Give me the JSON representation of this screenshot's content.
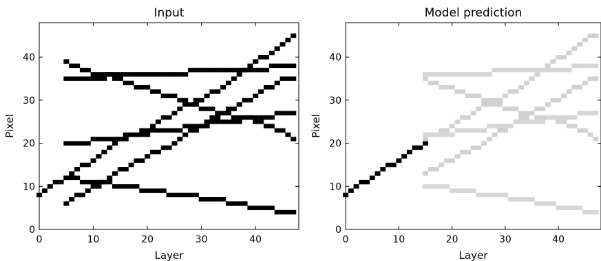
{
  "chart_data": [
    {
      "type": "heatmap",
      "title": "Input",
      "xlabel": "Layer",
      "ylabel": "Pixel",
      "xlim": [
        0,
        48
      ],
      "ylim": [
        0,
        48
      ],
      "xticks": [
        0,
        10,
        20,
        30,
        40
      ],
      "yticks": [
        0,
        10,
        20,
        30,
        40
      ],
      "colormap": "white-to-black",
      "tracks": [
        {
          "x": [
            0,
            1,
            2,
            3,
            4,
            5,
            6,
            7,
            8,
            9,
            10,
            11,
            12,
            13,
            14,
            15,
            16,
            17,
            18,
            19,
            20,
            21,
            22,
            23,
            24,
            25,
            26,
            27,
            28,
            29,
            30,
            31,
            32,
            33,
            34,
            35,
            36,
            37,
            38,
            39,
            40,
            41,
            42,
            43,
            44,
            45,
            46,
            47
          ],
          "y": [
            8,
            9,
            10,
            11,
            11,
            12,
            13,
            14,
            15,
            15,
            16,
            17,
            18,
            19,
            20,
            21,
            21,
            22,
            22,
            23,
            23,
            24,
            25,
            26,
            26,
            27,
            28,
            29,
            29,
            30,
            30,
            31,
            32,
            32,
            33,
            34,
            35,
            36,
            37,
            38,
            39,
            40,
            40,
            41,
            42,
            43,
            44,
            45
          ],
          "intensity": 1
        },
        {
          "x": [
            5,
            6,
            7,
            8,
            9,
            10,
            11,
            12,
            13,
            14,
            15,
            16,
            17,
            18,
            19,
            20,
            21,
            22,
            23,
            24,
            25,
            26,
            27,
            28,
            29,
            30,
            31,
            32,
            33,
            34,
            35,
            36,
            37,
            38,
            39,
            40,
            41,
            42,
            43,
            44,
            45,
            46,
            47
          ],
          "y": [
            6,
            7,
            8,
            8,
            9,
            10,
            10,
            11,
            12,
            13,
            14,
            14,
            15,
            16,
            16,
            17,
            18,
            18,
            19,
            19,
            20,
            21,
            22,
            23,
            23,
            24,
            25,
            26,
            26,
            27,
            28,
            28,
            29,
            30,
            30,
            31,
            32,
            33,
            33,
            34,
            35,
            35,
            35
          ],
          "intensity": 1
        },
        {
          "x": [
            5,
            6,
            7,
            8,
            9,
            10,
            11,
            12,
            13,
            14,
            15,
            16,
            17,
            18,
            19,
            20,
            21,
            22,
            23,
            24,
            25,
            26,
            27,
            28,
            29,
            30,
            31,
            32,
            33,
            34,
            35,
            36,
            37,
            38,
            39,
            40,
            41,
            42,
            43,
            44,
            45,
            46,
            47
          ],
          "y": [
            39,
            38,
            38,
            37,
            37,
            36,
            36,
            36,
            36,
            35,
            35,
            34,
            34,
            33,
            33,
            33,
            32,
            32,
            31,
            31,
            31,
            30,
            30,
            29,
            29,
            28,
            28,
            28,
            27,
            27,
            27,
            26,
            26,
            26,
            26,
            25,
            25,
            24,
            24,
            23,
            23,
            22,
            21
          ],
          "intensity": 1
        },
        {
          "x": [
            5,
            6,
            7,
            8,
            9,
            10,
            11,
            12,
            13,
            14,
            15,
            16,
            17,
            18,
            19,
            20,
            21,
            22,
            23,
            24,
            25,
            26,
            27,
            28,
            29,
            30,
            31,
            32,
            33,
            34,
            35,
            36,
            37,
            38,
            39,
            40,
            41,
            42,
            43,
            44,
            45,
            46,
            47
          ],
          "y": [
            35,
            35,
            35,
            35,
            35,
            35,
            35,
            35,
            36,
            36,
            36,
            36,
            36,
            36,
            36,
            36,
            36,
            36,
            36,
            36,
            36,
            36,
            36,
            37,
            37,
            37,
            37,
            37,
            37,
            37,
            37,
            37,
            37,
            37,
            37,
            37,
            37,
            37,
            38,
            38,
            38,
            38,
            38
          ],
          "intensity": 1
        },
        {
          "x": [
            5,
            6,
            7,
            8,
            9,
            10,
            11,
            12,
            13,
            14,
            15,
            16,
            17,
            18,
            19,
            20,
            21,
            22,
            23,
            24,
            25,
            26,
            27,
            28,
            29,
            30,
            31,
            32,
            33,
            34,
            35,
            36,
            37,
            38,
            39,
            40,
            41,
            42,
            43,
            44,
            45,
            46,
            47
          ],
          "y": [
            20,
            20,
            20,
            20,
            20,
            21,
            21,
            21,
            21,
            21,
            21,
            22,
            22,
            22,
            22,
            22,
            23,
            23,
            23,
            23,
            23,
            23,
            24,
            24,
            24,
            24,
            24,
            25,
            25,
            25,
            25,
            25,
            25,
            26,
            26,
            26,
            26,
            26,
            26,
            27,
            27,
            27,
            27
          ],
          "intensity": 1
        },
        {
          "x": [
            5,
            6,
            7,
            8,
            9,
            10,
            11,
            12,
            13,
            14,
            15,
            16,
            17,
            18,
            19,
            20,
            21,
            22,
            23,
            24,
            25,
            26,
            27,
            28,
            29,
            30,
            31,
            32,
            33,
            34,
            35,
            36,
            37,
            38,
            39,
            40,
            41,
            42,
            43,
            44,
            45,
            46,
            47
          ],
          "y": [
            12,
            12,
            12,
            11,
            11,
            11,
            11,
            11,
            11,
            10,
            10,
            10,
            10,
            10,
            9,
            9,
            9,
            9,
            9,
            8,
            8,
            8,
            8,
            8,
            8,
            7,
            7,
            7,
            7,
            7,
            6,
            6,
            6,
            6,
            5,
            5,
            5,
            5,
            5,
            4,
            4,
            4,
            4
          ],
          "intensity": 1
        }
      ]
    },
    {
      "type": "heatmap",
      "title": "Model prediction",
      "xlabel": "Layer",
      "ylabel": "Pixel",
      "xlim": [
        0,
        48
      ],
      "ylim": [
        0,
        48
      ],
      "xticks": [
        0,
        10,
        20,
        30,
        40
      ],
      "yticks": [
        0,
        10,
        20,
        30,
        40
      ],
      "colormap": "white-to-black",
      "tracks": [
        {
          "x": [
            0,
            1,
            2,
            3,
            4,
            5,
            6,
            7,
            8,
            9,
            10,
            11,
            12,
            13,
            14,
            15
          ],
          "y": [
            8,
            9,
            10,
            11,
            11,
            12,
            13,
            14,
            15,
            15,
            16,
            17,
            18,
            19,
            19,
            20
          ],
          "intensity": 1
        },
        {
          "x": [
            15,
            16,
            17,
            18,
            19,
            20,
            21,
            22,
            23,
            24,
            25,
            26,
            27,
            28,
            29,
            30,
            31,
            32,
            33,
            34,
            35,
            36,
            37,
            38,
            39,
            40,
            41,
            42,
            43,
            44,
            45,
            46,
            47
          ],
          "y": [
            21,
            22,
            22,
            23,
            23,
            24,
            25,
            26,
            26,
            27,
            28,
            29,
            29,
            30,
            30,
            31,
            32,
            32,
            33,
            34,
            35,
            36,
            37,
            38,
            39,
            40,
            40,
            41,
            42,
            43,
            44,
            45,
            45
          ],
          "intensity": 0.18
        },
        {
          "x": [
            15,
            16,
            17,
            18,
            19,
            20,
            21,
            22,
            23,
            24,
            25,
            26,
            27,
            28,
            29,
            30,
            31,
            32,
            33,
            34,
            35,
            36,
            37,
            38,
            39,
            40,
            41,
            42,
            43,
            44,
            45,
            46,
            47
          ],
          "y": [
            13,
            14,
            14,
            15,
            16,
            16,
            17,
            18,
            18,
            19,
            19,
            20,
            21,
            22,
            23,
            23,
            24,
            25,
            26,
            26,
            27,
            28,
            28,
            29,
            30,
            30,
            31,
            32,
            33,
            33,
            34,
            35,
            35
          ],
          "intensity": 0.18
        },
        {
          "x": [
            15,
            16,
            17,
            18,
            19,
            20,
            21,
            22,
            23,
            24,
            25,
            26,
            27,
            28,
            29,
            30,
            31,
            32,
            33,
            34,
            35,
            36,
            37,
            38,
            39,
            40,
            41,
            42,
            43,
            44,
            45,
            46,
            47
          ],
          "y": [
            35,
            34,
            34,
            33,
            33,
            33,
            32,
            32,
            31,
            31,
            31,
            30,
            30,
            29,
            29,
            28,
            28,
            28,
            27,
            27,
            27,
            26,
            26,
            26,
            26,
            25,
            25,
            24,
            24,
            23,
            23,
            22,
            21
          ],
          "intensity": 0.18
        },
        {
          "x": [
            15,
            16,
            17,
            18,
            19,
            20,
            21,
            22,
            23,
            24,
            25,
            26,
            27,
            28,
            29,
            30,
            31,
            32,
            33,
            34,
            35,
            36,
            37,
            38,
            39,
            40,
            41,
            42,
            43,
            44,
            45,
            46,
            47
          ],
          "y": [
            36,
            36,
            36,
            36,
            36,
            36,
            36,
            36,
            36,
            36,
            36,
            36,
            36,
            37,
            37,
            37,
            37,
            37,
            37,
            37,
            37,
            37,
            37,
            37,
            37,
            37,
            37,
            37,
            38,
            38,
            38,
            38,
            38
          ],
          "intensity": 0.16
        },
        {
          "x": [
            15,
            16,
            17,
            18,
            19,
            20,
            21,
            22,
            23,
            24,
            25,
            26,
            27,
            28,
            29,
            30,
            31,
            32,
            33,
            34,
            35,
            36,
            37,
            38,
            39,
            40,
            41,
            42,
            43,
            44,
            45,
            46,
            47
          ],
          "y": [
            22,
            22,
            22,
            22,
            22,
            22,
            23,
            23,
            23,
            23,
            23,
            23,
            24,
            24,
            24,
            24,
            24,
            25,
            25,
            25,
            25,
            25,
            25,
            26,
            26,
            26,
            26,
            26,
            26,
            27,
            27,
            27,
            27
          ],
          "intensity": 0.16
        },
        {
          "x": [
            15,
            16,
            17,
            18,
            19,
            20,
            21,
            22,
            23,
            24,
            25,
            26,
            27,
            28,
            29,
            30,
            31,
            32,
            33,
            34,
            35,
            36,
            37,
            38,
            39,
            40,
            41,
            42,
            43,
            44,
            45,
            46,
            47
          ],
          "y": [
            10,
            10,
            10,
            10,
            10,
            9,
            9,
            9,
            9,
            9,
            8,
            8,
            8,
            8,
            8,
            8,
            7,
            7,
            7,
            7,
            7,
            6,
            6,
            6,
            6,
            5,
            5,
            5,
            5,
            5,
            4,
            4,
            4
          ],
          "intensity": 0.16
        }
      ]
    }
  ]
}
